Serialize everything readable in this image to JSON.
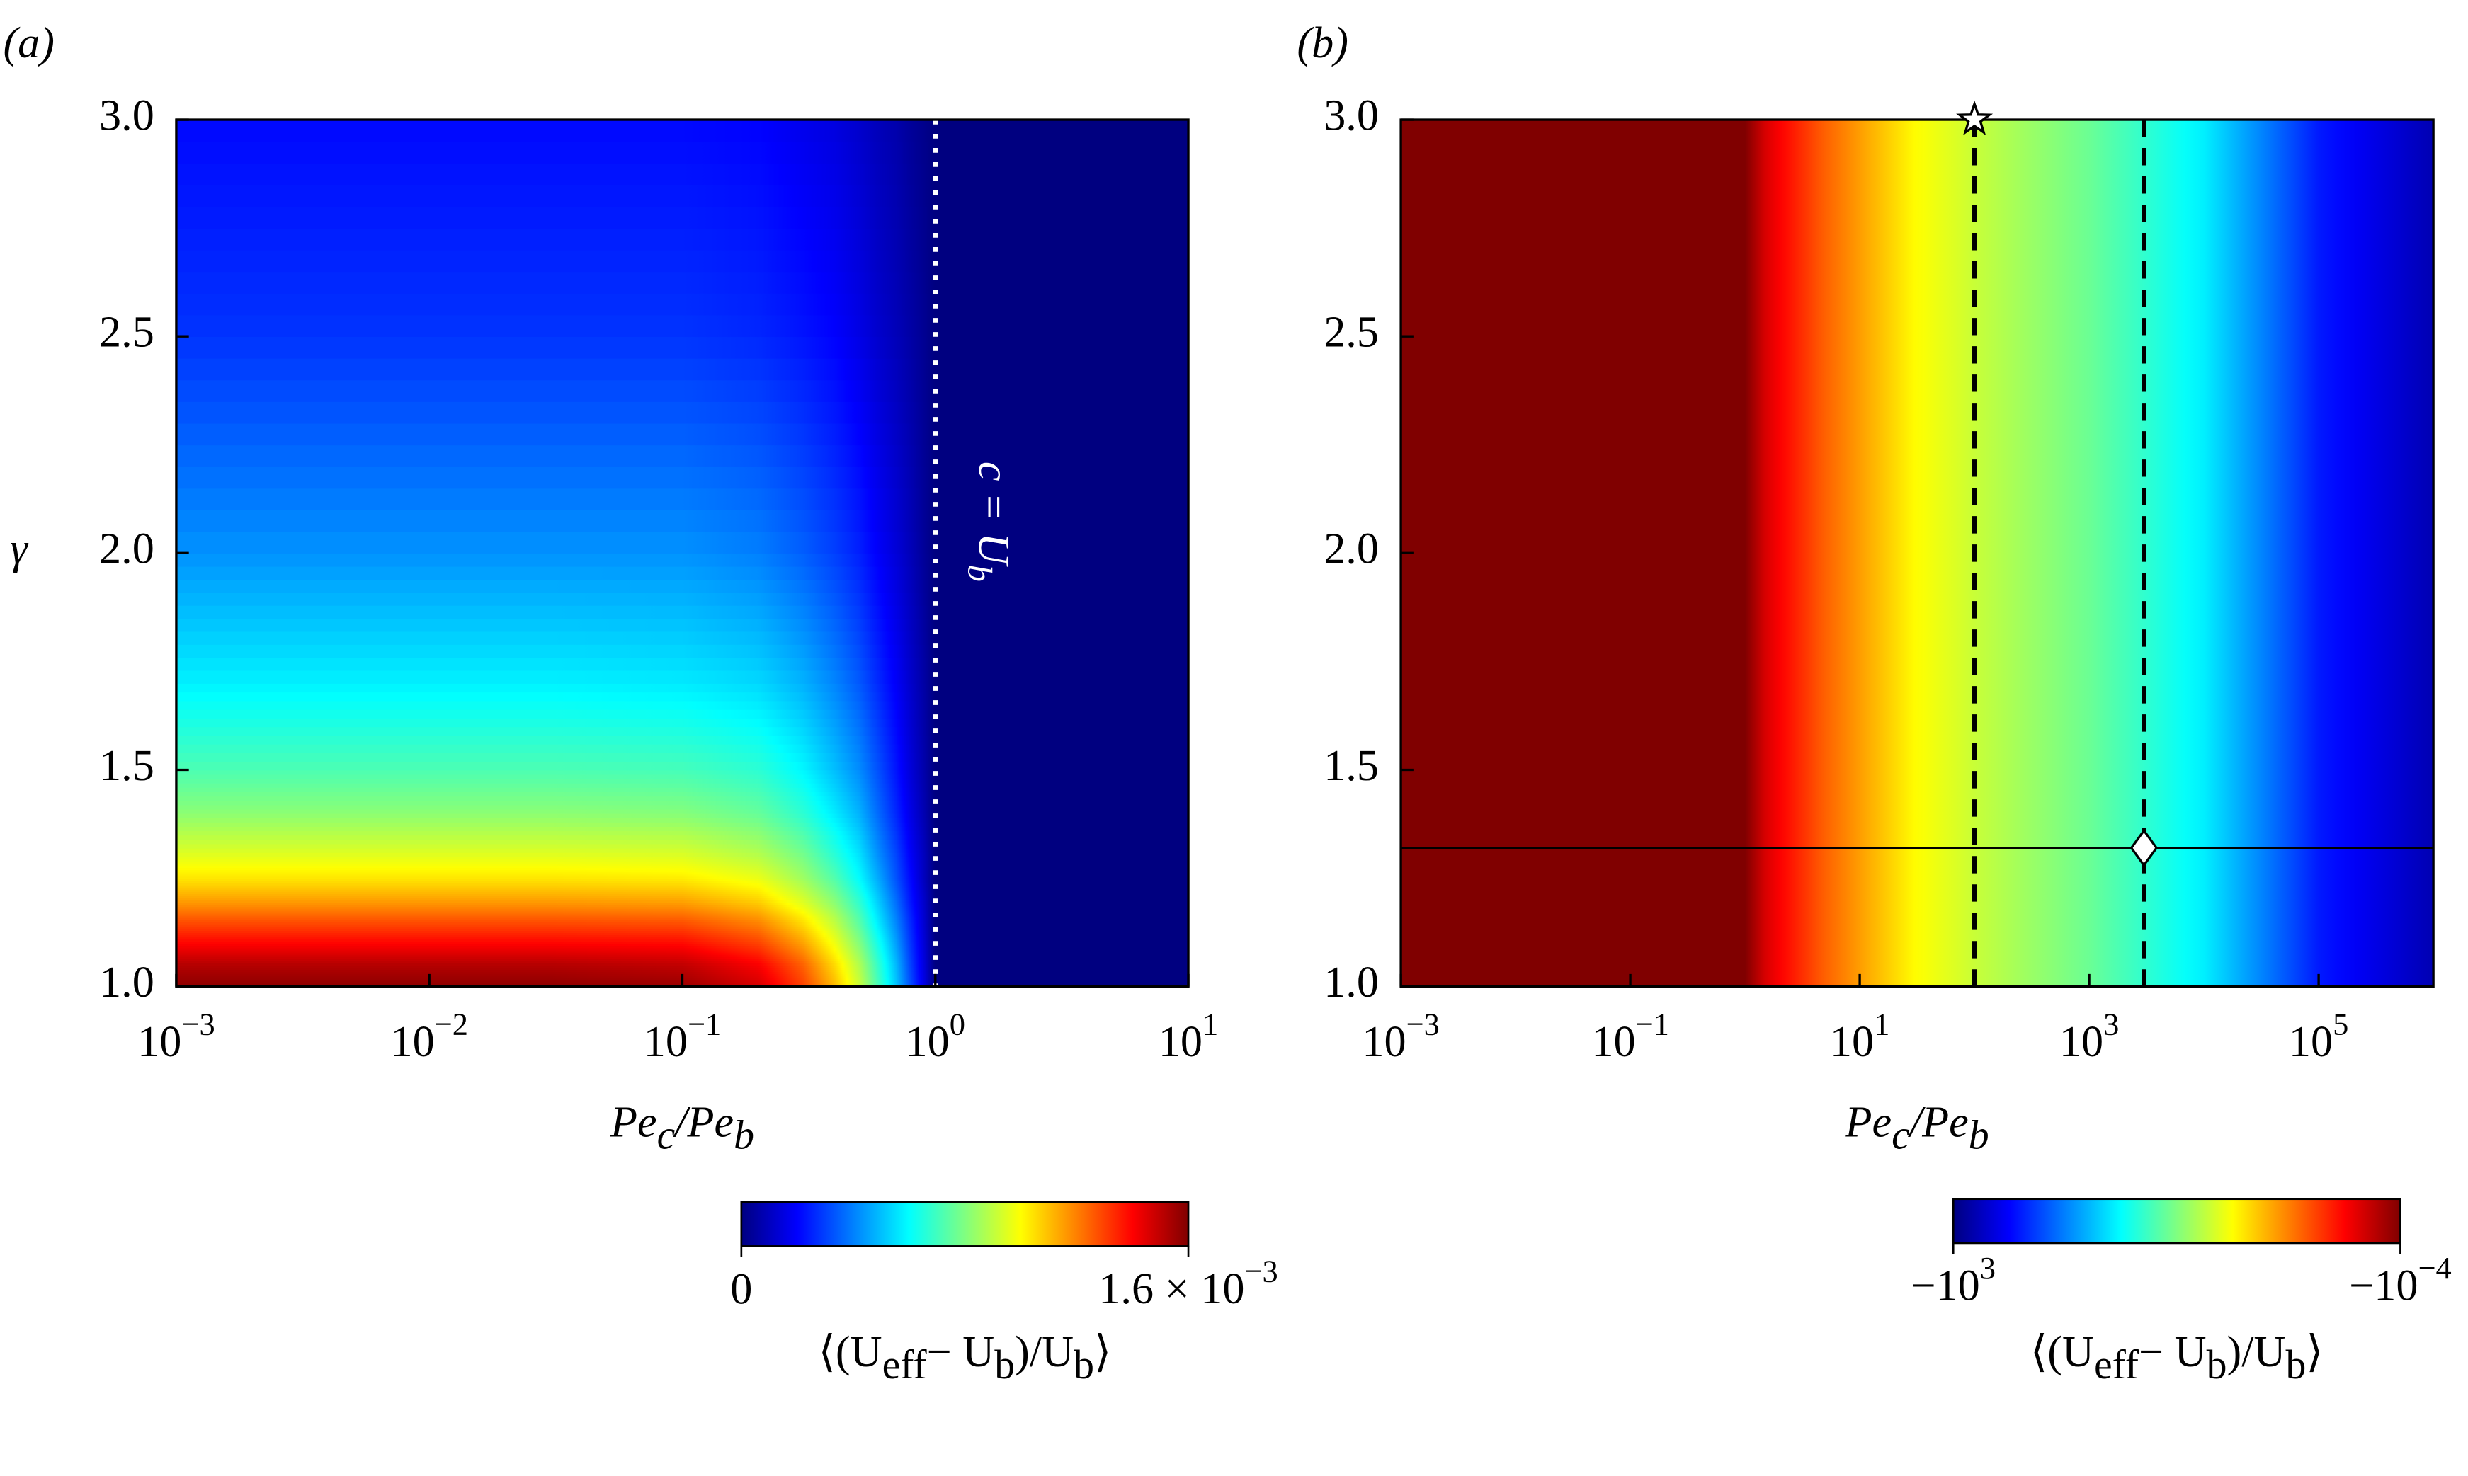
{
  "chart_data": [
    {
      "type": "heatmap",
      "panel_label": "(a)",
      "colormap": "jet",
      "xscale": "log",
      "x": [
        0.001,
        0.03,
        0.1,
        0.2,
        0.3,
        0.4,
        0.5,
        0.6,
        0.7,
        0.8,
        0.9,
        1,
        10
      ],
      "y": [
        1,
        1.05,
        1.1,
        1.15,
        1.2,
        1.25,
        1.3,
        1.4,
        1.5,
        1.7,
        2,
        2.5,
        3
      ],
      "z": [
        [
          0.00158,
          0.00158,
          0.00156,
          0.00147,
          0.0013,
          0.00111,
          0.00092,
          0.0007,
          0.00051,
          0.00032,
          0.00016,
          0,
          0
        ],
        [
          0.00152,
          0.00152,
          0.0015,
          0.00141,
          0.00125,
          0.00106,
          0.00088,
          0.00067,
          0.00049,
          0.0003,
          0.00015,
          0,
          0
        ],
        [
          0.0014,
          0.0014,
          0.00139,
          0.0013,
          0.00115,
          0.00098,
          0.00081,
          0.00062,
          0.00045,
          0.00028,
          0.00014,
          0,
          0
        ],
        [
          0.00128,
          0.00128,
          0.00127,
          0.00119,
          0.00105,
          0.0009,
          0.00074,
          0.00056,
          0.00041,
          0.00026,
          0.00013,
          0,
          0
        ],
        [
          0.00115,
          0.00115,
          0.00114,
          0.00107,
          0.00094,
          0.00081,
          0.00067,
          0.00051,
          0.00037,
          0.00023,
          0.00012,
          0,
          0
        ],
        [
          0.00104,
          0.00104,
          0.00103,
          0.00097,
          0.00085,
          0.00073,
          0.0006,
          0.00046,
          0.00033,
          0.00021,
          0.0001,
          0,
          0
        ],
        [
          0.00096,
          0.00096,
          0.00095,
          0.00089,
          0.00079,
          0.00067,
          0.00056,
          0.00042,
          0.00031,
          0.00019,
          0.0001,
          0,
          0
        ],
        [
          0.00082,
          0.00082,
          0.00081,
          0.00076,
          0.00067,
          0.00057,
          0.00048,
          0.00036,
          0.00026,
          0.00016,
          8e-05,
          0,
          0
        ],
        [
          0.00072,
          0.00072,
          0.00071,
          0.00067,
          0.00059,
          0.0005,
          0.00042,
          0.00032,
          0.00023,
          0.00014,
          7e-05,
          0,
          0
        ],
        [
          0.00058,
          0.00058,
          0.00057,
          0.00054,
          0.00048,
          0.00041,
          0.00034,
          0.00026,
          0.00019,
          0.00012,
          6e-05,
          0,
          0
        ],
        [
          0.00043,
          0.00043,
          0.00043,
          0.0004,
          0.00035,
          0.0003,
          0.00025,
          0.00019,
          0.00014,
          9e-05,
          4e-05,
          0,
          0
        ],
        [
          0.00028,
          0.00028,
          0.00028,
          0.00026,
          0.00023,
          0.0002,
          0.00016,
          0.00012,
          9e-05,
          6e-05,
          3e-05,
          0,
          0
        ],
        [
          0.00021,
          0.00021,
          0.00021,
          0.0002,
          0.00017,
          0.00015,
          0.00012,
          9e-05,
          7e-05,
          4e-05,
          2e-05,
          0,
          0
        ]
      ],
      "xlim": [
        0.001,
        10
      ],
      "xticks": [
        {
          "value": 0.001,
          "label": [
            "10",
            "−3"
          ]
        },
        {
          "value": 0.01,
          "label": [
            "10",
            "−2"
          ]
        },
        {
          "value": 0.1,
          "label": [
            "10",
            "−1"
          ]
        },
        {
          "value": 1,
          "label": [
            "10",
            "0"
          ]
        },
        {
          "value": 10,
          "label": [
            "10",
            "1"
          ]
        }
      ],
      "ylim": [
        1,
        3
      ],
      "yticks": [
        {
          "value": 1,
          "label": "1.0"
        },
        1.5,
        {
          "value": 2,
          "label": "2.0"
        },
        2.5,
        {
          "value": 3,
          "label": "3.0"
        }
      ],
      "xlabel": [
        "Pe",
        "c",
        "/Pe",
        "b"
      ],
      "ylabel": "γ",
      "clim": [
        0,
        0.0016
      ],
      "cscale": "linear",
      "cticks": [
        0,
        {
          "value": 0.0016,
          "label": [
            "1.6 × 10",
            "−3"
          ]
        }
      ],
      "clabel": [
        "⟨(U",
        "eff",
        "− U",
        "b",
        ")/U",
        "b",
        "⟩"
      ],
      "vlines": [
        {
          "x": 1,
          "color": "#ffffff",
          "style": "dotted",
          "label": [
            "c = U",
            "b"
          ]
        }
      ]
    },
    {
      "type": "heatmap",
      "panel_label": "(b)",
      "colormap": "jet",
      "xscale": "log",
      "x": [
        0.001,
        1,
        1.5,
        2,
        5,
        30,
        100,
        1000,
        10000,
        100000,
        1000000
      ],
      "z": [
        -0.0001,
        -0.0001,
        -0.0004,
        -0.0007,
        -0.0035,
        -0.04,
        -0.1,
        -0.44,
        -3,
        -90,
        -450
      ],
      "xlim": [
        0.001,
        1000000
      ],
      "xticks": [
        {
          "value": 0.001,
          "label": [
            "10",
            "−3"
          ]
        },
        {
          "value": 0.1,
          "label": [
            "10",
            "−1"
          ]
        },
        {
          "value": 10,
          "label": [
            "10",
            "1"
          ]
        },
        {
          "value": 1000,
          "label": [
            "10",
            "3"
          ]
        },
        {
          "value": 100000,
          "label": [
            "10",
            "5"
          ]
        }
      ],
      "ylim": [
        1,
        3
      ],
      "yticks": [
        {
          "value": 1,
          "label": "1.0"
        },
        1.5,
        {
          "value": 2,
          "label": "2.0"
        },
        2.5,
        {
          "value": 3,
          "label": "3.0"
        }
      ],
      "xlabel": [
        "Pe",
        "c",
        "/Pe",
        "b"
      ],
      "clim": [
        -1000,
        -0.0001
      ],
      "cscale": "log",
      "cticks": [
        {
          "value": -1000,
          "label": [
            "−10",
            "3"
          ]
        },
        {
          "value": -0.0001,
          "label": [
            "−10",
            "−4"
          ]
        }
      ],
      "clabel": [
        "⟨(U",
        "eff",
        "− U",
        "b",
        ")/U",
        "b",
        "⟩"
      ],
      "vlines": [
        {
          "x": 100,
          "color": "#000000",
          "style": "dashed"
        },
        {
          "x": 3000,
          "color": "#000000",
          "style": "dashed"
        }
      ],
      "hlines": [
        {
          "y": 1.32,
          "color": "#000000"
        }
      ],
      "markers": [
        {
          "x": 100,
          "y": 3,
          "shape": "star"
        },
        {
          "x": 3000,
          "y": 1.32,
          "shape": "diamond"
        }
      ]
    }
  ]
}
